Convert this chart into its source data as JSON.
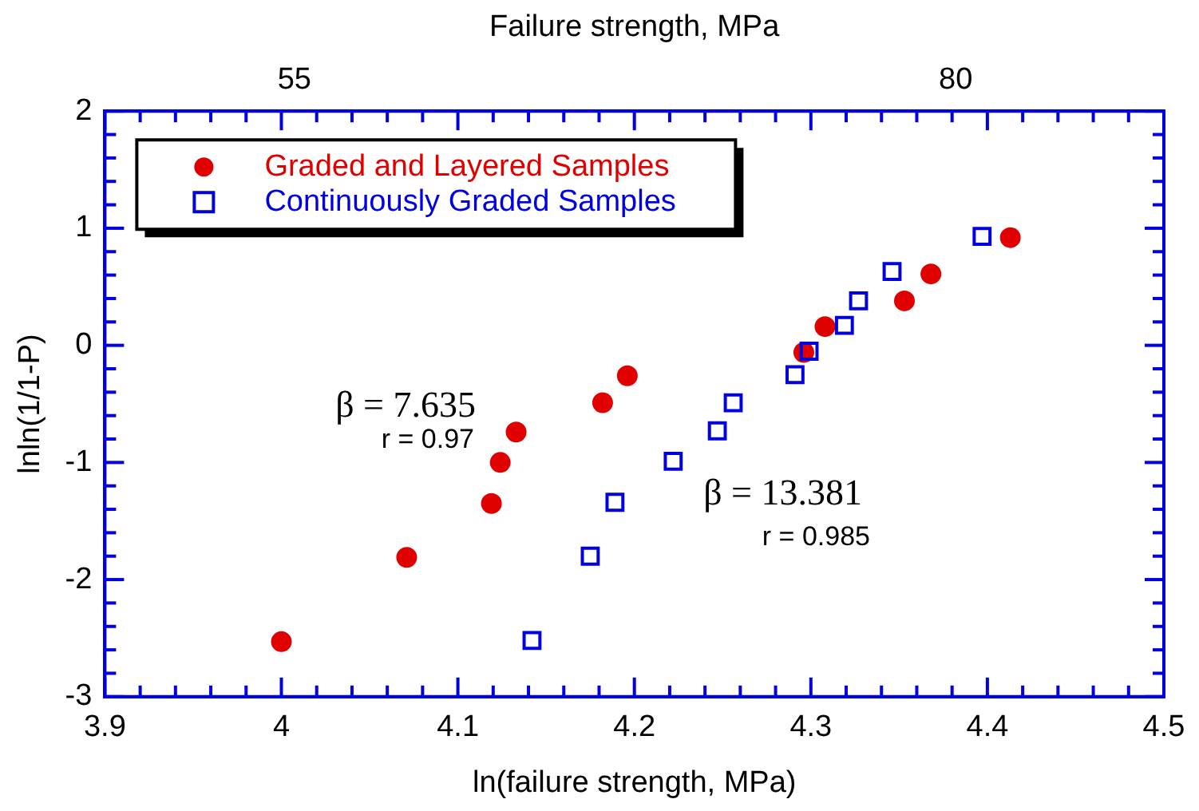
{
  "chart_data": {
    "type": "scatter",
    "xlabel": "ln(failure strength, MPa)",
    "ylabel": "lnln(1/1-P)",
    "x2label": "Failure strength, MPa",
    "xlim": [
      3.9,
      4.5
    ],
    "xticks": [
      3.9,
      4,
      4.1,
      4.2,
      4.3,
      4.4,
      4.5
    ],
    "x2lim": [
      49.4,
      90.02
    ],
    "x2ticks": [
      55,
      80
    ],
    "log": "x2",
    "ylim": [
      -3,
      2
    ],
    "yticks": [
      -3,
      -2,
      -1,
      0,
      1,
      2
    ],
    "grid": false,
    "legend": "top left",
    "annotations": [
      "β = 7.635",
      "r = 0.97",
      "β = 13.381",
      "r = 0.985"
    ],
    "series": [
      {
        "name": "Graded and Layered Samples",
        "color": "#e00000",
        "marker": "circle",
        "x": [
          4.0,
          4.071,
          4.119,
          4.124,
          4.133,
          4.182,
          4.196,
          4.296,
          4.308,
          4.353,
          4.368,
          4.413
        ],
        "values": [
          -2.53,
          -1.81,
          -1.35,
          -1.0,
          -0.74,
          -0.49,
          -0.26,
          -0.06,
          0.16,
          0.38,
          0.61,
          0.92
        ]
      },
      {
        "name": "Continuously Graded Samples",
        "color": "#0000e0",
        "marker": "square",
        "x": [
          4.142,
          4.175,
          4.189,
          4.222,
          4.247,
          4.256,
          4.291,
          4.299,
          4.319,
          4.327,
          4.346,
          4.397
        ],
        "values": [
          -2.52,
          -1.8,
          -1.34,
          -0.99,
          -0.73,
          -0.49,
          -0.25,
          -0.05,
          0.17,
          0.38,
          0.63,
          0.93
        ]
      }
    ]
  }
}
